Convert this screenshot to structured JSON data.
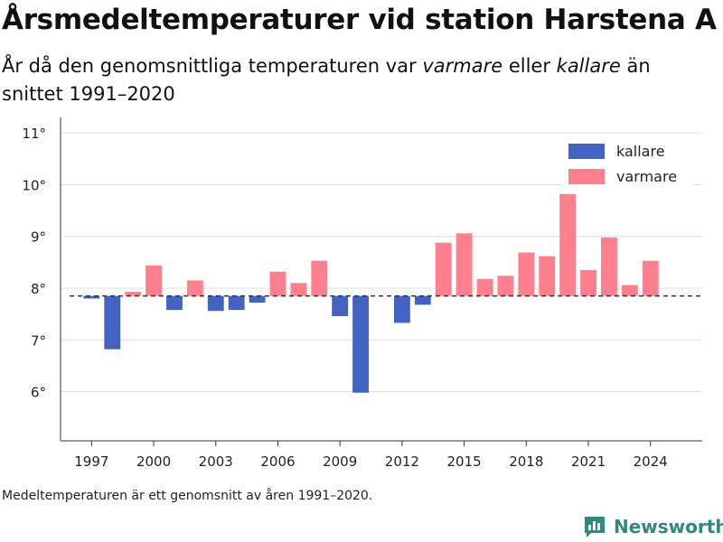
{
  "header": {
    "title": "Årsmedeltemperaturer vid station Harstena A",
    "subtitle_part1": "År då den genomsnittliga temperaturen var ",
    "subtitle_em1": "varmare",
    "subtitle_part2": " eller ",
    "subtitle_em2": "kallare",
    "subtitle_part3": " än snittet 1991–2020"
  },
  "footnote": "Medeltemperaturen är ett genomsnitt av åren 1991–2020.",
  "brand": {
    "name": "Newsworthy",
    "color": "#2e8b7a",
    "icon": "bar-chart-logo-icon"
  },
  "colors": {
    "cold": "#4363c2",
    "warm": "#ff7f8e",
    "grid": "#dddddd",
    "axis": "#333333",
    "reference": "#333333"
  },
  "chart_data": {
    "type": "bar",
    "title": "Årsmedeltemperaturer vid station Harstena A",
    "xlabel": "",
    "ylabel": "",
    "baseline": 7.85,
    "ylim": [
      5.05,
      11.3
    ],
    "y_ticks": [
      6,
      7,
      8,
      9,
      10,
      11
    ],
    "y_tick_labels": [
      "6°",
      "7°",
      "8°",
      "9°",
      "10°",
      "11°"
    ],
    "xlim": [
      1995.5,
      2026.5
    ],
    "x_ticks": [
      1997,
      2000,
      2003,
      2006,
      2009,
      2012,
      2015,
      2018,
      2021,
      2024
    ],
    "x_tick_labels": [
      "1997",
      "2000",
      "2003",
      "2006",
      "2009",
      "2012",
      "2015",
      "2018",
      "2021",
      "2024"
    ],
    "grid": true,
    "legend_position": "top-right",
    "legend": [
      {
        "key": "cold",
        "label": "kallare"
      },
      {
        "key": "warm",
        "label": "varmare"
      }
    ],
    "years": [
      1997,
      1998,
      1999,
      2000,
      2001,
      2002,
      2003,
      2004,
      2005,
      2006,
      2007,
      2008,
      2009,
      2010,
      2011,
      2012,
      2013,
      2014,
      2015,
      2016,
      2017,
      2018,
      2019,
      2020,
      2021,
      2022,
      2023,
      2024
    ],
    "values": [
      7.8,
      6.82,
      7.93,
      8.44,
      7.58,
      8.15,
      7.56,
      7.58,
      7.72,
      8.32,
      8.1,
      8.53,
      7.46,
      5.98,
      null,
      7.33,
      7.68,
      8.88,
      9.06,
      8.18,
      8.24,
      8.69,
      8.62,
      9.82,
      8.35,
      8.98,
      8.06,
      8.53
    ]
  }
}
